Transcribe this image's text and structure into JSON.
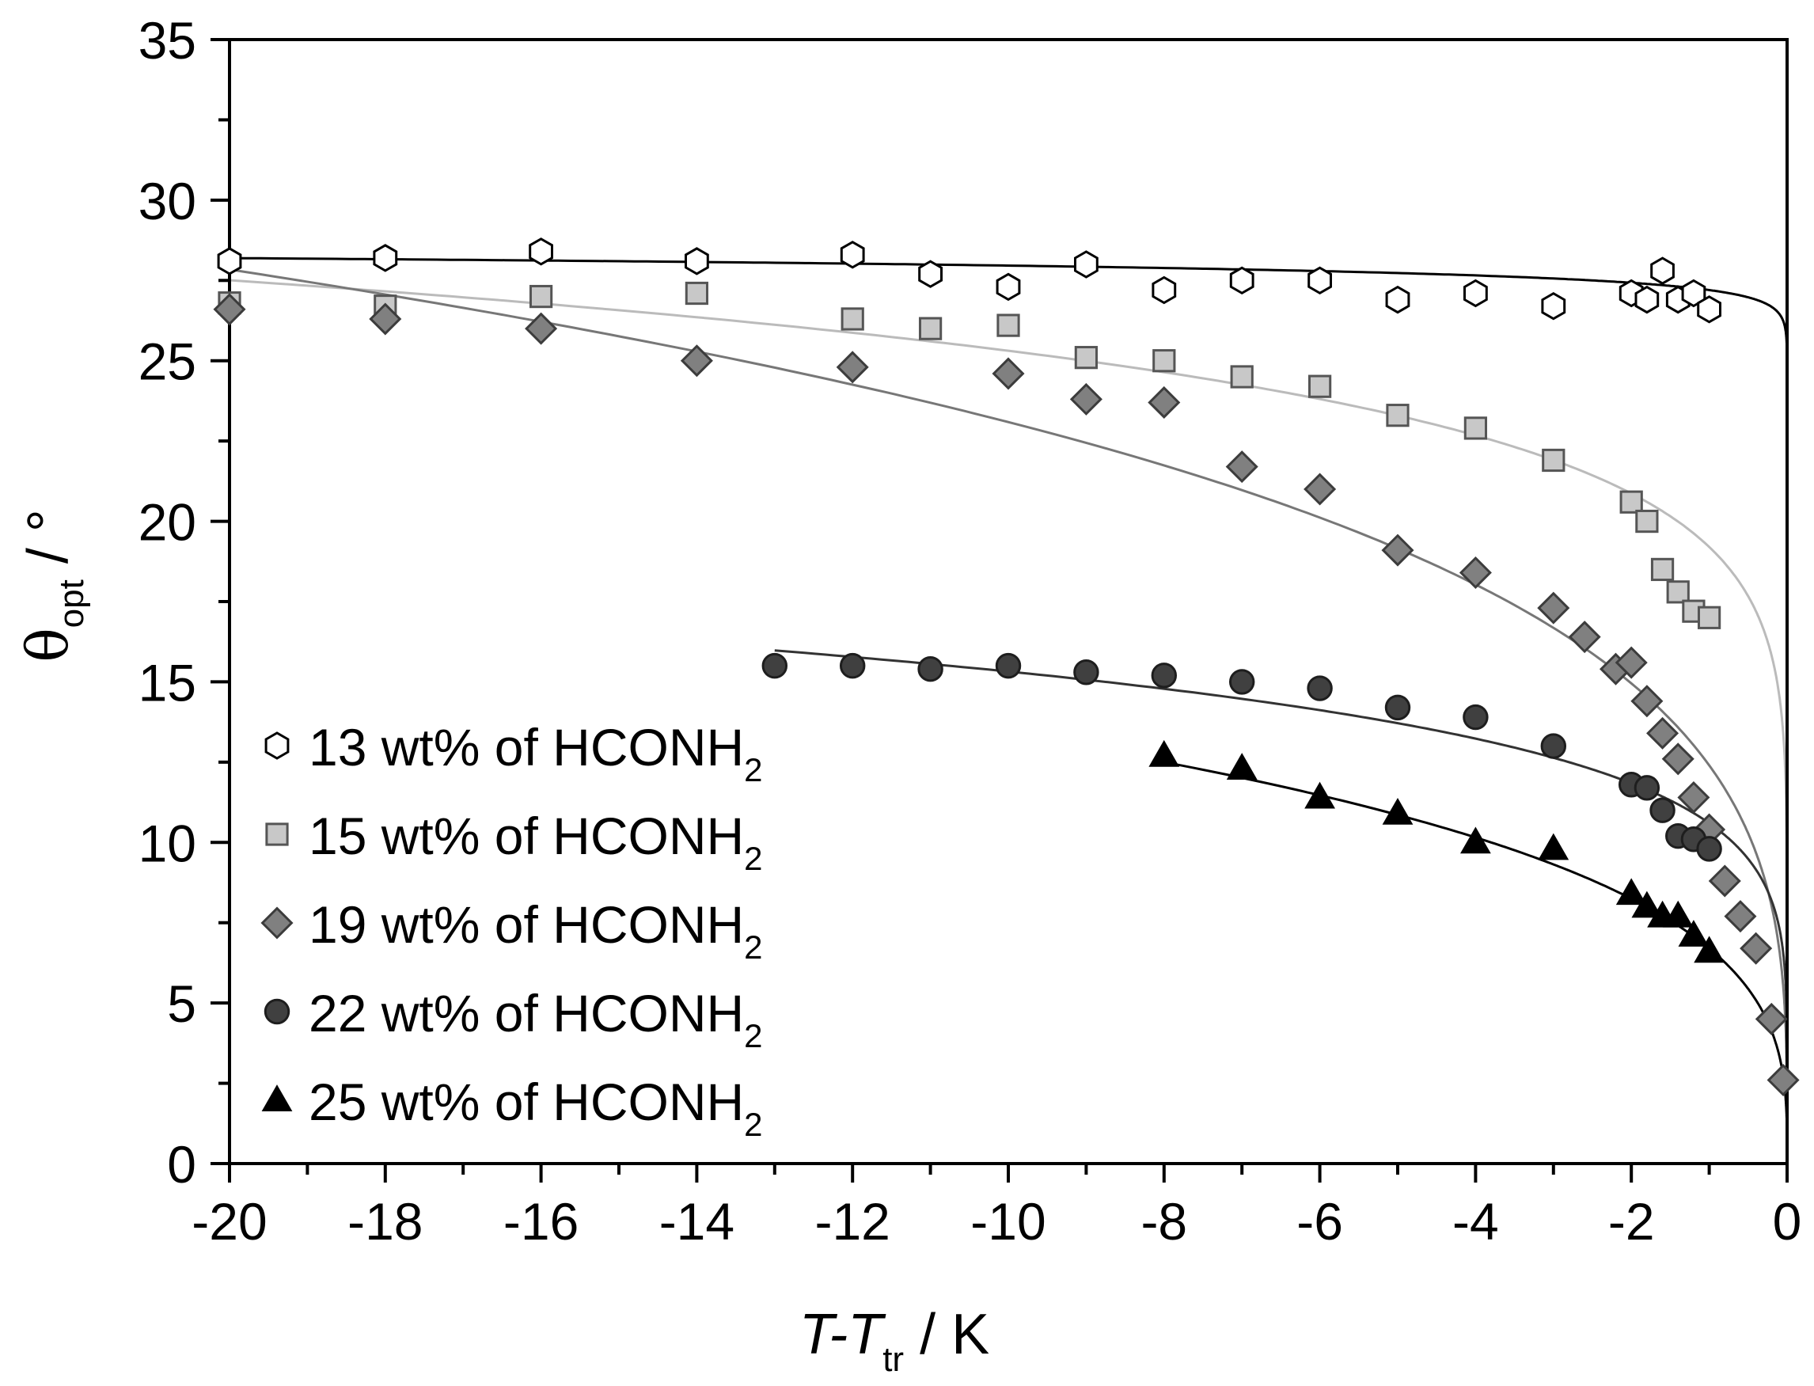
{
  "chart_data": {
    "type": "scatter",
    "title": "",
    "xlabel": {
      "main": "T-T",
      "sub": "tr",
      "unit": " / K"
    },
    "ylabel": {
      "symbol": "θ",
      "sub": "opt",
      "unit": " / °"
    },
    "xlim": [
      -20,
      0
    ],
    "ylim": [
      0,
      35
    ],
    "xticks": [
      -20,
      -18,
      -16,
      -14,
      -12,
      -10,
      -8,
      -6,
      -4,
      -2,
      0
    ],
    "xtick_labels": [
      "-20",
      "-18",
      "-16",
      "-14",
      "-12",
      "-10",
      "-8",
      "-6",
      "-4",
      "-2",
      "0"
    ],
    "yticks": [
      0,
      5,
      10,
      15,
      20,
      25,
      30,
      35
    ],
    "ytick_labels": [
      "0",
      "5",
      "10",
      "15",
      "20",
      "25",
      "30",
      "35"
    ],
    "grid": false,
    "legend_position": "bottom-left",
    "series": [
      {
        "name": "13 wt% of HCONH",
        "name_sub": "2",
        "marker": "hexagon-open",
        "color": "#000000",
        "fill": "#ffffff",
        "line_color": "#000000",
        "x": [
          -20,
          -18,
          -16,
          -14,
          -12,
          -11,
          -10,
          -9,
          -8,
          -7,
          -6,
          -5,
          -4,
          -3,
          -2,
          -1.8,
          -1.6,
          -1.4,
          -1.2,
          -1.0
        ],
        "y": [
          28.1,
          28.2,
          28.4,
          28.1,
          28.3,
          27.7,
          27.3,
          28.0,
          27.2,
          27.5,
          27.5,
          26.9,
          27.1,
          26.7,
          27.1,
          26.9,
          27.8,
          26.9,
          27.1,
          26.6
        ],
        "fit": {
          "A": 27.2,
          "beta": 0.012,
          "x_start": -20
        }
      },
      {
        "name": "15 wt% of HCONH",
        "name_sub": "2",
        "marker": "square",
        "color": "#555555",
        "fill": "#c8c8c8",
        "line_color": "#bbbbbb",
        "x": [
          -20,
          -18,
          -16,
          -14,
          -12,
          -11,
          -10,
          -9,
          -8,
          -7,
          -6,
          -5,
          -4,
          -3,
          -2,
          -1.8,
          -1.6,
          -1.4,
          -1.2,
          -1.0
        ],
        "y": [
          26.8,
          26.7,
          27.0,
          27.1,
          26.3,
          26.0,
          26.1,
          25.1,
          25.0,
          24.5,
          24.2,
          23.3,
          22.9,
          21.9,
          20.6,
          20.0,
          18.5,
          17.8,
          17.2,
          17.0
        ],
        "fit": {
          "A": 19.2,
          "beta": 0.12,
          "x_start": -20
        }
      },
      {
        "name": "19 wt% of HCONH",
        "name_sub": "2",
        "marker": "diamond",
        "color": "#3c3c3c",
        "fill": "#808080",
        "line_color": "#777777",
        "x": [
          -20,
          -18,
          -16,
          -14,
          -12,
          -10,
          -9,
          -8,
          -7,
          -6,
          -5,
          -4,
          -3,
          -2.6,
          -2.2,
          -2.0,
          -1.8,
          -1.6,
          -1.4,
          -1.2,
          -1.0,
          -0.8,
          -0.6,
          -0.4,
          -0.2,
          -0.05
        ],
        "y": [
          26.6,
          26.3,
          26.0,
          25.0,
          24.8,
          24.6,
          23.8,
          23.7,
          21.7,
          21.0,
          19.1,
          18.4,
          17.3,
          16.4,
          15.4,
          15.6,
          14.4,
          13.4,
          12.6,
          11.4,
          10.4,
          8.8,
          7.7,
          6.7,
          4.5,
          2.6
        ],
        "fit": {
          "A": 12.4,
          "beta": 0.27,
          "x_start": -20
        }
      },
      {
        "name": "22 wt% of HCONH",
        "name_sub": "2",
        "marker": "circle",
        "color": "#1e1e1e",
        "fill": "#404040",
        "line_color": "#333333",
        "x": [
          -13,
          -12,
          -11,
          -10,
          -9,
          -8,
          -7,
          -6,
          -5,
          -4,
          -3,
          -2,
          -1.8,
          -1.6,
          -1.4,
          -1.2,
          -1.0
        ],
        "y": [
          15.5,
          15.5,
          15.4,
          15.5,
          15.3,
          15.2,
          15.0,
          14.8,
          14.2,
          13.9,
          13.0,
          11.8,
          11.7,
          11.0,
          10.2,
          10.1,
          9.8
        ],
        "fit": {
          "A": 10.6,
          "beta": 0.16,
          "x_start": -13
        }
      },
      {
        "name": "25 wt% of HCONH",
        "name_sub": "2",
        "marker": "triangle",
        "color": "#000000",
        "fill": "#000000",
        "line_color": "#000000",
        "x": [
          -8,
          -7,
          -6,
          -5,
          -4,
          -3,
          -2,
          -1.8,
          -1.6,
          -1.4,
          -1.2,
          -1.0
        ],
        "y": [
          12.7,
          12.3,
          11.4,
          10.9,
          10.0,
          9.8,
          8.4,
          8.0,
          7.7,
          7.7,
          7.1,
          6.6
        ],
        "fit": {
          "A": 6.7,
          "beta": 0.3,
          "x_start": -8
        }
      }
    ]
  }
}
